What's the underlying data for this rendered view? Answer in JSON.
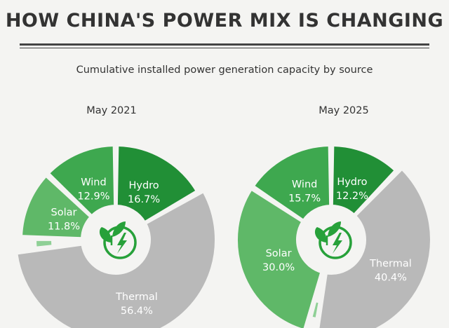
{
  "header": {
    "title": "HOW CHINA'S POWER MIX IS CHANGING",
    "subtitle": "Cumulative installed power generation capacity by source"
  },
  "colors": {
    "thermal": "#b9b9b9",
    "solar": "#5fb868",
    "solar_sliver": "#8fd096",
    "wind": "#3ea84f",
    "hydro": "#218f36",
    "icon": "#27a13a",
    "label_light": "#ffffff"
  },
  "icon_name": "leaf-lightning-energy-icon",
  "chart_data": [
    {
      "type": "pie",
      "title": "May 2021",
      "slices": [
        {
          "name": "Hydro",
          "label": "Hydro",
          "value_label": "16.7%",
          "value": 16.7
        },
        {
          "name": "Thermal",
          "label": "Thermal",
          "value_label": "56.4%",
          "value": 56.4
        },
        {
          "name": "Other",
          "label": "",
          "value_label": "",
          "value": 2.2
        },
        {
          "name": "Solar",
          "label": "Solar",
          "value_label": "11.8%",
          "value": 11.8
        },
        {
          "name": "Wind",
          "label": "Wind",
          "value_label": "12.9%",
          "value": 12.9
        }
      ]
    },
    {
      "type": "pie",
      "title": "May 2025",
      "slices": [
        {
          "name": "Hydro",
          "label": "Hydro",
          "value_label": "12.2%",
          "value": 12.2
        },
        {
          "name": "Thermal",
          "label": "Thermal",
          "value_label": "40.4%",
          "value": 40.4
        },
        {
          "name": "Other",
          "label": "",
          "value_label": "",
          "value": 1.7
        },
        {
          "name": "Solar",
          "label": "Solar",
          "value_label": "30.0%",
          "value": 30.0
        },
        {
          "name": "Wind",
          "label": "Wind",
          "value_label": "15.7%",
          "value": 15.7
        }
      ]
    }
  ]
}
